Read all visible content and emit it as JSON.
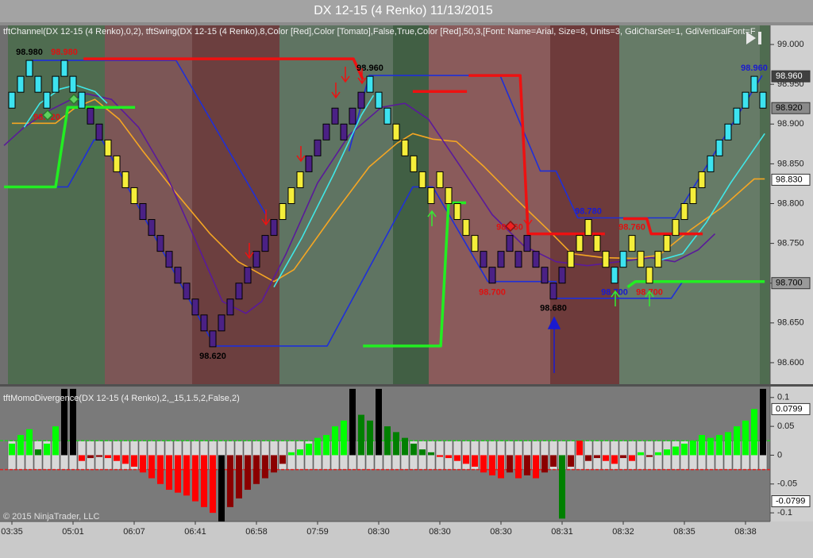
{
  "chart_data": [
    {
      "type": "renko",
      "title": "DX 12-15 (4 Renko)  11/13/2015",
      "subtitle": "tftChannel(DX 12-15 (4 Renko),0,2), tftSwing(DX 12-15 (4 Renko),8,Color [Red],Color [Tomato],False,True,Color [Red],50,3,[Font: Name=Arial, Size=8, Units=3, GdiCharSet=1, GdiVerticalFont=F",
      "categories": [
        "03:35",
        null,
        null,
        null,
        null,
        null,
        null,
        "05:01",
        null,
        null,
        null,
        null,
        null,
        null,
        "06:07",
        null,
        null,
        null,
        null,
        null,
        null,
        "06:41",
        null,
        null,
        null,
        null,
        null,
        null,
        "06:58",
        null,
        null,
        null,
        null,
        null,
        null,
        "07:59",
        null,
        null,
        null,
        null,
        null,
        null,
        "08:30",
        null,
        null,
        null,
        null,
        null,
        null,
        "08:30",
        null,
        null,
        null,
        null,
        null,
        null,
        "08:30",
        null,
        null,
        null,
        null,
        null,
        null,
        "08:31",
        null,
        null,
        null,
        null,
        null,
        null,
        "08:32",
        null,
        null,
        null,
        null,
        null,
        null,
        "08:35",
        null,
        null,
        null,
        null,
        null,
        null,
        "08:38",
        null,
        null
      ],
      "open": [
        98.92,
        98.94,
        98.96,
        98.96,
        98.94,
        98.94,
        98.96,
        98.96,
        98.94,
        98.92,
        98.9,
        98.88,
        98.86,
        98.84,
        98.82,
        98.8,
        98.78,
        98.76,
        98.74,
        98.72,
        98.7,
        98.68,
        98.66,
        98.64,
        98.64,
        98.66,
        98.68,
        98.7,
        98.72,
        98.74,
        98.76,
        98.78,
        98.8,
        98.82,
        98.84,
        98.86,
        98.88,
        98.9,
        98.9,
        98.9,
        98.92,
        98.94,
        98.94,
        98.92,
        98.9,
        98.88,
        98.86,
        98.84,
        98.82,
        98.82,
        98.82,
        98.8,
        98.78,
        98.76,
        98.74,
        98.72,
        98.72,
        98.74,
        98.74,
        98.74,
        98.74,
        98.72,
        98.7,
        98.7,
        98.72,
        98.74,
        98.76,
        98.76,
        98.74,
        98.72,
        98.72,
        98.74,
        98.74,
        98.72,
        98.72,
        98.74,
        98.76,
        98.78,
        98.8,
        98.82,
        98.84,
        98.86,
        98.88,
        98.9,
        98.92,
        98.94,
        98.94
      ],
      "close": [
        98.94,
        98.96,
        98.98,
        98.94,
        98.92,
        98.96,
        98.98,
        98.94,
        98.92,
        98.9,
        98.88,
        98.86,
        98.84,
        98.82,
        98.8,
        98.78,
        98.76,
        98.74,
        98.72,
        98.7,
        98.68,
        98.66,
        98.64,
        98.62,
        98.66,
        98.68,
        98.7,
        98.72,
        98.74,
        98.76,
        98.78,
        98.8,
        98.82,
        98.84,
        98.86,
        98.88,
        98.9,
        98.92,
        98.88,
        98.92,
        98.94,
        98.96,
        98.92,
        98.9,
        98.88,
        98.86,
        98.84,
        98.82,
        98.8,
        98.84,
        98.8,
        98.78,
        98.76,
        98.74,
        98.72,
        98.7,
        98.74,
        98.76,
        98.72,
        98.76,
        98.72,
        98.7,
        98.68,
        98.72,
        98.74,
        98.76,
        98.78,
        98.74,
        98.72,
        98.7,
        98.74,
        98.76,
        98.72,
        98.7,
        98.74,
        98.76,
        98.78,
        98.8,
        98.82,
        98.84,
        98.86,
        98.88,
        98.9,
        98.92,
        98.94,
        98.96,
        98.92
      ],
      "colors": [
        "#3de3f0",
        "#3de3f0",
        "#3de3f0",
        "#3de3f0",
        "#3de3f0",
        "#3de3f0",
        "#3de3f0",
        "#3de3f0",
        "#3de3f0",
        "#4b2185",
        "#4b2185",
        "#f5ee3a",
        "#f5ee3a",
        "#f5ee3a",
        "#f5ee3a",
        "#4b2185",
        "#4b2185",
        "#4b2185",
        "#4b2185",
        "#4b2185",
        "#4b2185",
        "#4b2185",
        "#4b2185",
        "#4b2185",
        "#4b2185",
        "#4b2185",
        "#4b2185",
        "#4b2185",
        "#4b2185",
        "#4b2185",
        "#4b2185",
        "#f5ee3a",
        "#f5ee3a",
        "#f5ee3a",
        "#4b2185",
        "#4b2185",
        "#4b2185",
        "#4b2185",
        "#4b2185",
        "#4b2185",
        "#4b2185",
        "#3de3f0",
        "#3de3f0",
        "#3de3f0",
        "#f5ee3a",
        "#f5ee3a",
        "#f5ee3a",
        "#f5ee3a",
        "#f5ee3a",
        "#f5ee3a",
        "#f5ee3a",
        "#f5ee3a",
        "#f5ee3a",
        "#f5ee3a",
        "#4b2185",
        "#4b2185",
        "#4b2185",
        "#4b2185",
        "#4b2185",
        "#4b2185",
        "#4b2185",
        "#4b2185",
        "#4b2185",
        "#4b2185",
        "#f5ee3a",
        "#f5ee3a",
        "#f5ee3a",
        "#f5ee3a",
        "#f5ee3a",
        "#3de3f0",
        "#3de3f0",
        "#f5ee3a",
        "#f5ee3a",
        "#f5ee3a",
        "#f5ee3a",
        "#f5ee3a",
        "#f5ee3a",
        "#f5ee3a",
        "#f5ee3a",
        "#f5ee3a",
        "#3de3f0",
        "#3de3f0",
        "#3de3f0",
        "#3de3f0",
        "#3de3f0",
        "#3de3f0",
        "#3de3f0"
      ],
      "ylim": [
        98.573,
        99.024
      ],
      "yticks": [
        {
          "value": 99,
          "label": "99.000"
        },
        {
          "value": 98.95,
          "label": "98.950"
        },
        {
          "value": 98.9,
          "label": "98.900"
        },
        {
          "value": 98.85,
          "label": "98.850"
        },
        {
          "value": 98.8,
          "label": "98.800"
        },
        {
          "value": 98.75,
          "label": "98.750"
        },
        {
          "value": 98.7,
          "label": "98.700"
        },
        {
          "value": 98.65,
          "label": "98.650"
        },
        {
          "value": 98.6,
          "label": "98.600"
        }
      ],
      "axis_markers": [
        {
          "value": 98.96,
          "label": "98.960",
          "color": "#404040"
        },
        {
          "value": 98.92,
          "label": "98.920",
          "color": "#8a8a8a"
        },
        {
          "value": 98.83,
          "label": "98.830",
          "color": "#ffffff"
        },
        {
          "value": 98.7,
          "label": "98.700",
          "color": "#9a9a9a"
        }
      ],
      "lines": [
        {
          "color": "#1f2fd8",
          "x": [
            2.3,
            18.8,
            29.1,
            33,
            38.6,
            40.9,
            55.9,
            60.5,
            62.3,
            64.8,
            75.9,
            85.9
          ],
          "values": [
            98.98,
            98.98,
            98.786,
            null,
            98.866,
            98.961,
            98.961,
            98.841,
            98.841,
            98.782,
            98.782,
            98.961
          ]
        },
        {
          "color": "#1f2fd8",
          "x": [
            0,
            6.4,
            9.4,
            10.3,
            23.2,
            36.1,
            45.9,
            48.2,
            54.5,
            62.3,
            62.3,
            75.5,
            76.8,
            86.2
          ],
          "values": [
            98.821,
            98.821,
            98.88,
            98.88,
            98.621,
            98.621,
            98.821,
            98.821,
            98.702,
            98.702,
            98.681,
            98.681,
            98.702,
            98.702
          ]
        },
        {
          "color": "#f5a623",
          "x": [
            0,
            2.3,
            5,
            7.3,
            9.5,
            12.3,
            15,
            18.6,
            22.7,
            25.9,
            30,
            32.3,
            36.8,
            40.9,
            44.1,
            45.9,
            48.2,
            50.9,
            54.1,
            57.7,
            61.4,
            64.1,
            67.7,
            71.4,
            74.1,
            77.7,
            81.4,
            85,
            86.2
          ],
          "values": [
            98.901,
            98.901,
            98.901,
            98.921,
            98.931,
            98.906,
            98.866,
            98.816,
            98.762,
            98.727,
            98.702,
            98.717,
            98.786,
            98.846,
            98.876,
            98.888,
            98.881,
            98.878,
            98.846,
            98.806,
            98.767,
            98.737,
            98.732,
            98.731,
            98.735,
            98.767,
            98.796,
            98.831,
            98.831
          ]
        },
        {
          "color": "#5a1a9a",
          "x": [
            -0.9,
            1.4,
            4.1,
            6.8,
            8.6,
            11.4,
            14.5,
            17.7,
            20.9,
            24.1,
            26.8,
            28.6,
            31.4,
            35,
            38.6,
            42.3,
            45,
            47.7,
            51.4,
            55,
            58.6,
            62.3,
            65.9,
            69.5,
            73.2,
            75.9,
            78.6,
            80.5
          ],
          "values": [
            98.873,
            98.896,
            98.916,
            98.931,
            98.938,
            98.931,
            98.896,
            98.836,
            98.757,
            98.677,
            98.662,
            98.677,
            98.737,
            98.826,
            98.886,
            98.921,
            98.926,
            98.906,
            98.846,
            98.786,
            98.747,
            98.727,
            98.722,
            98.727,
            98.732,
            98.727,
            98.742,
            98.762
          ]
        },
        {
          "color": "#40e8e8",
          "x": [
            1.4,
            3.2,
            5.5,
            7.3,
            9.5,
            10.9,
            20,
            30,
            33.2,
            36.8,
            40,
            41.4,
            60,
            73.6,
            76.8,
            79.5,
            82.3,
            86.2
          ],
          "values": [
            98.896,
            98.926,
            98.944,
            98.949,
            98.941,
            98.926,
            null,
            98.695,
            98.757,
            98.836,
            98.911,
            98.936,
            null,
            98.727,
            98.737,
            98.776,
            98.826,
            98.888
          ]
        }
      ],
      "swing_lines": [
        {
          "color": "#ee1111",
          "x": [
            8.2,
            39.1,
            40.2,
            43,
            45.9,
            52.1,
            52.2,
            52.3,
            58.2,
            59.1,
            67.9,
            69,
            70,
            72.7,
            73.2,
            79.1
          ],
          "values": [
            98.982,
            98.982,
            98.956,
            null,
            98.941,
            98.941,
            null,
            98.961,
            98.961,
            98.762,
            98.762,
            null,
            98.781,
            98.781,
            98.762,
            98.762
          ]
        },
        {
          "color": "#22ee22",
          "x": [
            -0.9,
            5,
            6.4,
            14.1,
            30,
            40.2,
            49.1,
            50,
            52,
            60,
            70.5,
            71.4,
            86.2
          ],
          "values": [
            98.821,
            98.821,
            98.921,
            98.921,
            null,
            98.621,
            98.621,
            98.801,
            98.801,
            null,
            98.695,
            98.702,
            98.702
          ]
        }
      ],
      "annotations": [
        {
          "label": "98.980",
          "value": 98.98,
          "x": 2,
          "color": "#000000"
        },
        {
          "label": "98.980",
          "value": 98.98,
          "x": 6,
          "color": "#dd1111"
        },
        {
          "label": "98.920",
          "value": 98.92,
          "x": 4,
          "color": "#dd1111"
        },
        {
          "label": "98.620",
          "value": 98.62,
          "x": 23,
          "color": "#000000"
        },
        {
          "label": "98.960",
          "value": 98.96,
          "x": 41,
          "color": "#000000"
        },
        {
          "label": "98.780",
          "value": 98.78,
          "x": 66,
          "color": "#1a1ad0"
        },
        {
          "label": "98.760",
          "value": 98.76,
          "x": 57,
          "color": "#dd1111"
        },
        {
          "label": "98.700",
          "value": 98.7,
          "x": 55,
          "color": "#dd1111"
        },
        {
          "label": "98.680",
          "value": 98.68,
          "x": 62,
          "color": "#000000"
        },
        {
          "label": "98.700",
          "value": 98.7,
          "x": 69,
          "color": "#1a1ad0"
        },
        {
          "label": "98.760",
          "value": 98.76,
          "x": 71,
          "color": "#dd1111"
        },
        {
          "label": "98.700",
          "value": 98.7,
          "x": 73,
          "color": "#dd1111"
        },
        {
          "label": "98.960",
          "value": 98.96,
          "x": 85,
          "color": "#1a1ad0"
        }
      ]
    },
    {
      "type": "bar",
      "title": "tftMomoDivergence(DX 12-15 (4 Renko),2,_15,1.5,2,False,2)",
      "values": [
        0.02,
        0.035,
        0.045,
        0.01,
        0.02,
        0.05,
        0.115,
        0.115,
        -0.01,
        -0.005,
        -0.003,
        -0.005,
        -0.01,
        -0.015,
        -0.02,
        -0.03,
        -0.04,
        -0.05,
        -0.06,
        -0.065,
        -0.07,
        -0.08,
        -0.09,
        -0.1,
        -0.115,
        -0.09,
        -0.075,
        -0.06,
        -0.05,
        -0.04,
        -0.03,
        -0.015,
        0.005,
        0.01,
        0.02,
        0.03,
        0.035,
        0.05,
        0.06,
        0.115,
        0.07,
        0.06,
        0.115,
        0.05,
        0.04,
        0.03,
        0.02,
        0.01,
        0.005,
        -0.003,
        -0.005,
        -0.01,
        -0.015,
        -0.02,
        -0.03,
        -0.035,
        -0.04,
        -0.03,
        -0.04,
        -0.035,
        -0.04,
        -0.03,
        -0.02,
        -0.11,
        -0.02,
        0.025,
        -0.01,
        -0.005,
        -0.01,
        -0.015,
        -0.005,
        -0.01,
        0.005,
        -0.003,
        0.005,
        0.01,
        0.015,
        0.02,
        0.025,
        0.035,
        0.03,
        0.035,
        0.04,
        0.05,
        0.06,
        0.08,
        0.115
      ],
      "colors": [
        "lime",
        "lime",
        "lime",
        "green",
        "lime",
        "lime",
        "black",
        "black",
        "red",
        "darkred",
        "darkred",
        "red",
        "red",
        "red",
        "red",
        "red",
        "red",
        "red",
        "red",
        "red",
        "red",
        "red",
        "red",
        "red",
        "black",
        "darkred",
        "darkred",
        "darkred",
        "darkred",
        "darkred",
        "darkred",
        "darkred",
        "lime",
        "lime",
        "lime",
        "lime",
        "lime",
        "lime",
        "lime",
        "black",
        "green",
        "green",
        "black",
        "green",
        "green",
        "green",
        "green",
        "green",
        "green",
        "red",
        "red",
        "red",
        "red",
        "red",
        "red",
        "red",
        "red",
        "darkred",
        "red",
        "darkred",
        "red",
        "darkred",
        "darkred",
        "green",
        "darkred",
        "red",
        "darkred",
        "darkred",
        "red",
        "red",
        "darkred",
        "red",
        "lime",
        "darkred",
        "lime",
        "lime",
        "lime",
        "lime",
        "lime",
        "lime",
        "lime",
        "lime",
        "lime",
        "lime",
        "lime",
        "lime",
        "black"
      ],
      "ylim": [
        -0.115,
        0.119
      ],
      "yticks": [
        0.1,
        0.05,
        0,
        -0.05,
        -0.1
      ],
      "levels": [
        {
          "value": 0.025,
          "color": "#22cc22"
        },
        {
          "value": -0.025,
          "color": "#dd2222"
        }
      ],
      "axis_markers": [
        {
          "value": 0.0799,
          "label": "0.0799",
          "color": "#ffffff"
        },
        {
          "value": -0.0799,
          "label": "-0.0799",
          "color": "#ffffff"
        }
      ],
      "footnote": "© 2015 NinjaTrader, LLC"
    }
  ]
}
